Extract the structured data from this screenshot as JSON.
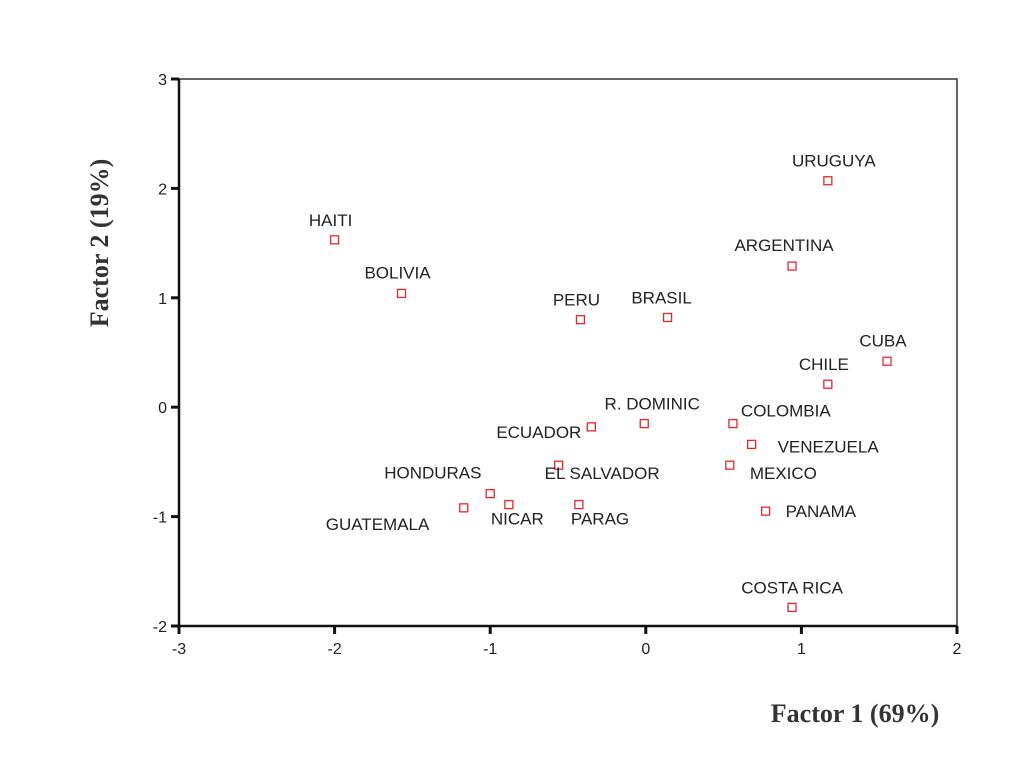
{
  "chart_data": {
    "type": "scatter",
    "xlabel": "Factor 1   (69%)",
    "ylabel": "Factor 2    (19%)",
    "xlim": [
      -3,
      2
    ],
    "ylim": [
      -2,
      3
    ],
    "xticks": [
      "-3",
      "-2",
      "-1",
      "0",
      "1",
      "2"
    ],
    "yticks": [
      "-2",
      "-1",
      "0",
      "1",
      "2",
      "3"
    ],
    "grid": false,
    "legend": "none",
    "marker_color": "#e8262a",
    "points": [
      {
        "label": "URUGUYA",
        "x": 1.17,
        "y": 2.07
      },
      {
        "label": "HAITI",
        "x": -2.0,
        "y": 1.53
      },
      {
        "label": "ARGENTINA",
        "x": 0.94,
        "y": 1.29
      },
      {
        "label": "BOLIVIA",
        "x": -1.57,
        "y": 1.04
      },
      {
        "label": "PERU",
        "x": -0.42,
        "y": 0.8
      },
      {
        "label": "BRASIL",
        "x": 0.14,
        "y": 0.82
      },
      {
        "label": "CUBA",
        "x": 1.55,
        "y": 0.42
      },
      {
        "label": "CHILE",
        "x": 1.17,
        "y": 0.21
      },
      {
        "label": "R. DOMINIC",
        "x": -0.01,
        "y": -0.15
      },
      {
        "label": "COLOMBIA",
        "x": 0.56,
        "y": -0.15
      },
      {
        "label": "ECUADOR",
        "x": -0.35,
        "y": -0.18
      },
      {
        "label": "VENEZUELA",
        "x": 0.68,
        "y": -0.34
      },
      {
        "label": "EL SALVADOR",
        "x": -0.56,
        "y": -0.53
      },
      {
        "label": "MEXICO",
        "x": 0.54,
        "y": -0.53
      },
      {
        "label": "HONDURAS",
        "x": -1.0,
        "y": -0.79
      },
      {
        "label": "NICAR",
        "x": -0.88,
        "y": -0.89
      },
      {
        "label": "PARAG",
        "x": -0.43,
        "y": -0.89
      },
      {
        "label": "GUATEMALA",
        "x": -1.17,
        "y": -0.92
      },
      {
        "label": "PANAMA",
        "x": 0.77,
        "y": -0.95
      },
      {
        "label": "COSTA RICA",
        "x": 0.94,
        "y": -1.83
      }
    ]
  }
}
